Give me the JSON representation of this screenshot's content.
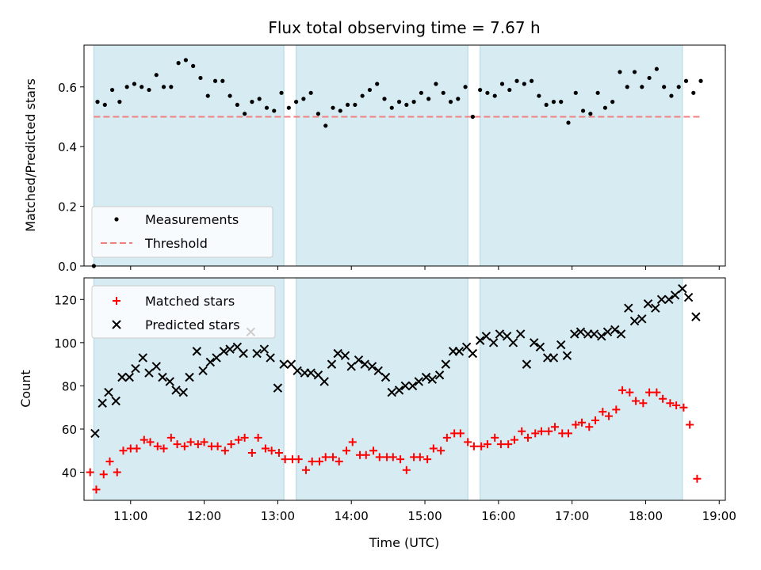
{
  "chart_data": [
    {
      "type": "scatter",
      "title": "Flux total observing time = 7.67 h",
      "xlabel": "",
      "ylabel": "Matched/Predicted stars",
      "xlim": [
        "10:22",
        "19:05"
      ],
      "ylim": [
        0,
        0.74
      ],
      "yticks": [
        "0.0",
        "0.2",
        "0.4",
        "0.6"
      ],
      "threshold": {
        "name": "Threshold",
        "value": 0.5
      },
      "legend": "lower-left",
      "observing_windows": [
        [
          "10:30",
          "13:05"
        ],
        [
          "13:15",
          "15:35"
        ],
        [
          "15:45",
          "18:30"
        ]
      ],
      "series": [
        {
          "name": "Measurements",
          "x": [
            "10:30",
            "10:33",
            "10:39",
            "10:45",
            "10:51",
            "10:57",
            "11:03",
            "11:09",
            "11:15",
            "11:21",
            "11:27",
            "11:33",
            "11:39",
            "11:45",
            "11:51",
            "11:57",
            "12:03",
            "12:09",
            "12:15",
            "12:21",
            "12:27",
            "12:33",
            "12:39",
            "12:45",
            "12:51",
            "12:57",
            "13:03",
            "13:09",
            "13:15",
            "13:21",
            "13:27",
            "13:33",
            "13:39",
            "13:45",
            "13:51",
            "13:57",
            "14:03",
            "14:09",
            "14:15",
            "14:21",
            "14:27",
            "14:33",
            "14:39",
            "14:45",
            "14:51",
            "14:57",
            "15:03",
            "15:09",
            "15:15",
            "15:21",
            "15:27",
            "15:33",
            "15:39",
            "15:45",
            "15:51",
            "15:57",
            "16:03",
            "16:09",
            "16:15",
            "16:21",
            "16:27",
            "16:33",
            "16:39",
            "16:45",
            "16:51",
            "16:57",
            "17:03",
            "17:09",
            "17:15",
            "17:21",
            "17:27",
            "17:33",
            "17:39",
            "17:45",
            "17:51",
            "17:57",
            "18:03",
            "18:09",
            "18:15",
            "18:21",
            "18:27",
            "18:33",
            "18:39",
            "18:45"
          ],
          "y": [
            0.0,
            0.55,
            0.54,
            0.59,
            0.55,
            0.6,
            0.61,
            0.6,
            0.59,
            0.64,
            0.6,
            0.6,
            0.68,
            0.69,
            0.67,
            0.63,
            0.57,
            0.62,
            0.62,
            0.57,
            0.54,
            0.51,
            0.55,
            0.56,
            0.53,
            0.52,
            0.58,
            0.53,
            0.55,
            0.56,
            0.58,
            0.51,
            0.47,
            0.53,
            0.52,
            0.54,
            0.54,
            0.57,
            0.59,
            0.61,
            0.56,
            0.53,
            0.55,
            0.54,
            0.55,
            0.58,
            0.56,
            0.61,
            0.58,
            0.55,
            0.56,
            0.6,
            0.5,
            0.59,
            0.58,
            0.57,
            0.61,
            0.59,
            0.62,
            0.61,
            0.62,
            0.57,
            0.54,
            0.55,
            0.55,
            0.48,
            0.58,
            0.52,
            0.51,
            0.58,
            0.53,
            0.55,
            0.65,
            0.6,
            0.65,
            0.6,
            0.63,
            0.66,
            0.6,
            0.57,
            0.6,
            0.62,
            0.58,
            0.62
          ]
        }
      ]
    },
    {
      "type": "scatter",
      "title": "",
      "xlabel": "Time (UTC)",
      "ylabel": "Count",
      "xlim": [
        "10:22",
        "19:05"
      ],
      "ylim": [
        27,
        130
      ],
      "yticks": [
        "40",
        "60",
        "80",
        "100",
        "120"
      ],
      "xticks": [
        "11:00",
        "12:00",
        "13:00",
        "14:00",
        "15:00",
        "16:00",
        "17:00",
        "18:00",
        "19:00"
      ],
      "legend": "top-left",
      "series": [
        {
          "name": "Matched stars",
          "x": [
            "10:27",
            "10:32",
            "10:38",
            "10:43",
            "10:49",
            "10:54",
            "11:00",
            "11:05",
            "11:11",
            "11:16",
            "11:22",
            "11:27",
            "11:33",
            "11:38",
            "11:44",
            "11:49",
            "11:55",
            "12:00",
            "12:06",
            "12:11",
            "12:17",
            "12:22",
            "12:28",
            "12:33",
            "12:39",
            "12:44",
            "12:50",
            "12:55",
            "13:01",
            "13:06",
            "13:12",
            "13:17",
            "13:23",
            "13:28",
            "13:34",
            "13:39",
            "13:45",
            "13:50",
            "13:56",
            "14:01",
            "14:07",
            "14:12",
            "14:18",
            "14:23",
            "14:29",
            "14:34",
            "14:40",
            "14:45",
            "14:51",
            "14:56",
            "15:02",
            "15:07",
            "15:13",
            "15:18",
            "15:24",
            "15:29",
            "15:35",
            "15:40",
            "15:46",
            "15:51",
            "15:57",
            "16:02",
            "16:08",
            "16:13",
            "16:19",
            "16:24",
            "16:30",
            "16:35",
            "16:41",
            "16:46",
            "16:52",
            "16:57",
            "17:03",
            "17:08",
            "17:14",
            "17:19",
            "17:25",
            "17:30",
            "17:36",
            "17:41",
            "17:47",
            "17:52",
            "17:58",
            "18:03",
            "18:09",
            "18:14",
            "18:20",
            "18:25",
            "18:31",
            "18:36",
            "18:42"
          ],
          "y": [
            40,
            32,
            39,
            45,
            40,
            50,
            51,
            51,
            55,
            54,
            52,
            51,
            56,
            53,
            52,
            54,
            53,
            54,
            52,
            52,
            50,
            53,
            55,
            56,
            49,
            56,
            51,
            50,
            49,
            46,
            46,
            46,
            41,
            45,
            45,
            47,
            47,
            45,
            50,
            54,
            48,
            48,
            50,
            47,
            47,
            47,
            46,
            41,
            47,
            47,
            46,
            51,
            50,
            56,
            58,
            58,
            54,
            52,
            52,
            53,
            56,
            53,
            53,
            55,
            59,
            56,
            58,
            59,
            59,
            61,
            58,
            58,
            62,
            63,
            61,
            64,
            68,
            66,
            69,
            78,
            77,
            73,
            72,
            77,
            77,
            74,
            72,
            71,
            70,
            62,
            37
          ]
        },
        {
          "name": "Predicted stars",
          "x": [
            "10:31",
            "10:37",
            "10:42",
            "10:48",
            "10:53",
            "10:59",
            "11:04",
            "11:10",
            "11:15",
            "11:21",
            "11:26",
            "11:32",
            "11:37",
            "11:43",
            "11:48",
            "11:54",
            "11:59",
            "12:05",
            "12:10",
            "12:16",
            "12:21",
            "12:27",
            "12:32",
            "12:38",
            "12:43",
            "12:49",
            "12:54",
            "13:00",
            "13:05",
            "13:11",
            "13:16",
            "13:22",
            "13:27",
            "13:33",
            "13:38",
            "13:44",
            "13:49",
            "13:55",
            "14:00",
            "14:06",
            "14:11",
            "14:17",
            "14:22",
            "14:28",
            "14:33",
            "14:39",
            "14:44",
            "14:50",
            "14:55",
            "15:01",
            "15:06",
            "15:12",
            "15:17",
            "15:23",
            "15:28",
            "15:34",
            "15:39",
            "15:45",
            "15:50",
            "15:56",
            "16:01",
            "16:07",
            "16:12",
            "16:18",
            "16:23",
            "16:29",
            "16:34",
            "16:40",
            "16:45",
            "16:51",
            "16:56",
            "17:02",
            "17:07",
            "17:13",
            "17:18",
            "17:24",
            "17:29",
            "17:35",
            "17:40",
            "17:46",
            "17:51",
            "17:57",
            "18:02",
            "18:08",
            "18:13",
            "18:19",
            "18:24",
            "18:30",
            "18:35",
            "18:41"
          ],
          "y": [
            58,
            72,
            77,
            73,
            84,
            84,
            88,
            93,
            86,
            89,
            84,
            82,
            78,
            77,
            84,
            96,
            87,
            91,
            93,
            96,
            97,
            98,
            95,
            105,
            95,
            97,
            93,
            79,
            90,
            90,
            87,
            86,
            86,
            85,
            82,
            90,
            95,
            94,
            89,
            92,
            90,
            89,
            87,
            84,
            77,
            78,
            80,
            80,
            82,
            84,
            83,
            85,
            90,
            96,
            96,
            98,
            95,
            101,
            103,
            100,
            104,
            103,
            100,
            104,
            90,
            100,
            98,
            93,
            93,
            99,
            94,
            104,
            105,
            104,
            104,
            103,
            105,
            106,
            104,
            116,
            110,
            111,
            118,
            116,
            120,
            120,
            122,
            125,
            121,
            112
          ]
        }
      ]
    }
  ]
}
